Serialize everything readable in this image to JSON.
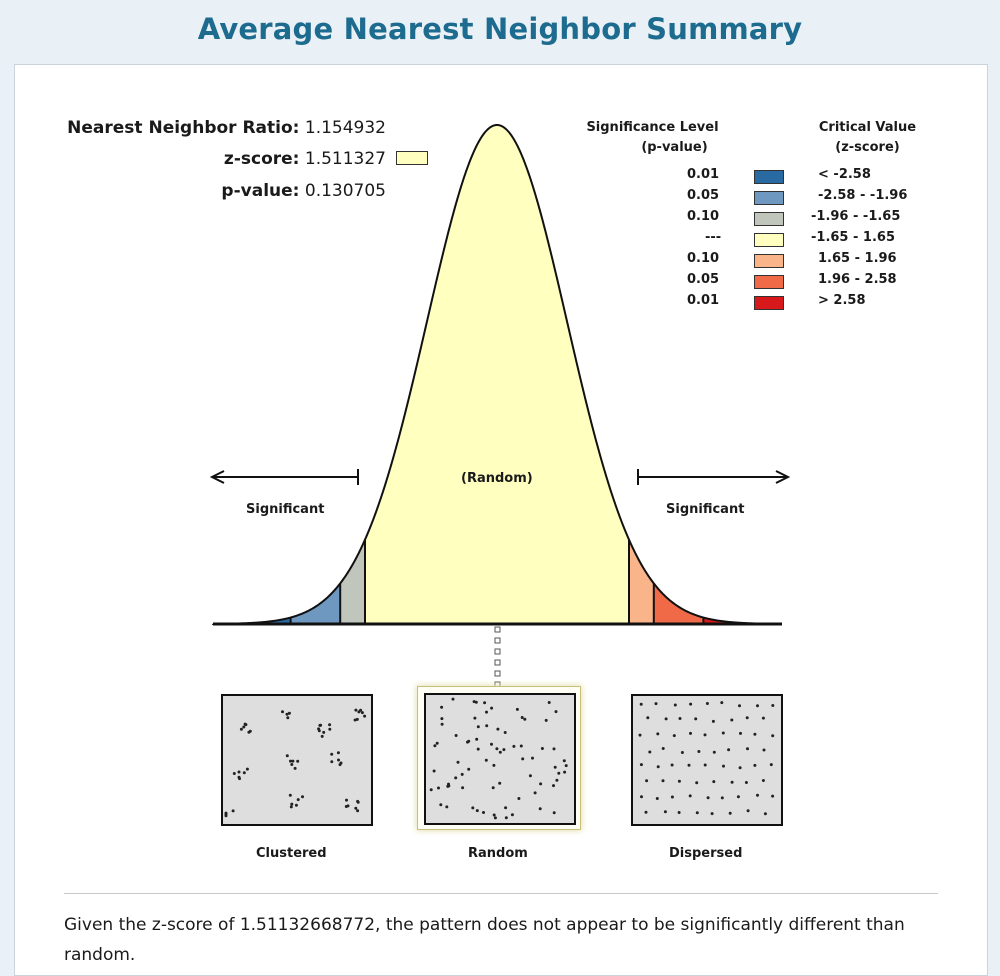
{
  "title": "Average Nearest Neighbor Summary",
  "stats": {
    "ratio_label": "Nearest Neighbor Ratio:",
    "ratio_value": "1.154932",
    "z_label": "z-score:",
    "z_value": "1.511327",
    "p_label": "p-value:",
    "p_value": "0.130705"
  },
  "legend": {
    "header_sig_line1": "Significance Level",
    "header_sig_line2": "(p-value)",
    "header_crit_line1": "Critical Value",
    "header_crit_line2": "(z-score)",
    "rows": [
      {
        "p": "0.01",
        "z": "< -2.58",
        "color": "#2a6aa3"
      },
      {
        "p": "0.05",
        "z": "-2.58 - -1.96",
        "color": "#6f98c0"
      },
      {
        "p": "0.10",
        "z": "-1.96 - -1.65",
        "color": "#c0c6bb"
      },
      {
        "p": "---",
        "z": "-1.65 - 1.65",
        "color": "#ffffc0"
      },
      {
        "p": "0.10",
        "z": "1.65 - 1.96",
        "color": "#fab48a"
      },
      {
        "p": "0.05",
        "z": "1.96 - 2.58",
        "color": "#f06a48"
      },
      {
        "p": "0.01",
        "z": "> 2.58",
        "color": "#d7191c"
      }
    ]
  },
  "curve": {
    "left_label": "Significant",
    "center_label": "(Random)",
    "right_label": "Significant",
    "z_score": 1.511327
  },
  "patterns": {
    "clustered": "Clustered",
    "random": "Random",
    "dispersed": "Dispersed",
    "selected": "random"
  },
  "summary": "Given the z-score of 1.51132668772, the pattern does not appear to be significantly different than random."
}
